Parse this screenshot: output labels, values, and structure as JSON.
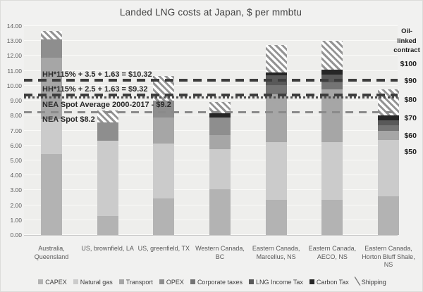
{
  "chart_data": {
    "type": "bar",
    "stacked": true,
    "title": "Landed LNG costs at Japan, $ per mmbtu",
    "ylabel": "",
    "ylim": [
      0,
      14
    ],
    "y_ticks_step": 1,
    "grid": true,
    "legend_position": "bottom",
    "series_names": [
      "CAPEX",
      "Natural gas",
      "Transport",
      "OPEX",
      "Corporate taxes",
      "LNG Income Tax",
      "Carbon Tax",
      "Shipping"
    ],
    "legend": [
      {
        "label": "CAPEX",
        "color": "#b3b3b3",
        "type": "square"
      },
      {
        "label": "Natural gas",
        "color": "#cbcbcb",
        "type": "square"
      },
      {
        "label": "Transport",
        "color": "#a6a6a6",
        "type": "square"
      },
      {
        "label": "OPEX",
        "color": "#8e8e8e",
        "type": "square"
      },
      {
        "label": "Corporate taxes",
        "color": "#747474",
        "type": "square"
      },
      {
        "label": "LNG Income Tax",
        "color": "#595959",
        "type": "square"
      },
      {
        "label": "Carbon Tax",
        "color": "#262626",
        "type": "square"
      },
      {
        "label": "Shipping",
        "color": "#949494",
        "type": "hatch"
      }
    ],
    "bars": [
      {
        "category_lines": [
          "Australia,",
          "Queensland"
        ],
        "total": 13.65,
        "segments": [
          {
            "name": "CAPEX",
            "value": 5.4
          },
          {
            "name": "Natural gas",
            "value": 2.4
          },
          {
            "name": "Transport",
            "value": 4.1
          },
          {
            "name": "OPEX",
            "value": 1.2
          },
          {
            "name": "Shipping",
            "value": 0.55
          }
        ]
      },
      {
        "category_lines": [
          "US, brownfield, LA"
        ],
        "total": 8.35,
        "segments": [
          {
            "name": "CAPEX",
            "value": 1.25
          },
          {
            "name": "Natural gas",
            "value": 5.05
          },
          {
            "name": "OPEX",
            "value": 1.25
          },
          {
            "name": "Shipping",
            "value": 0.8
          }
        ]
      },
      {
        "category_lines": [
          "US, greenfield, TX"
        ],
        "total": 10.65,
        "segments": [
          {
            "name": "CAPEX",
            "value": 2.45
          },
          {
            "name": "Natural gas",
            "value": 3.7
          },
          {
            "name": "Transport",
            "value": 1.7
          },
          {
            "name": "OPEX",
            "value": 1.15
          },
          {
            "name": "Shipping",
            "value": 1.65
          }
        ]
      },
      {
        "category_lines": [
          "Western Canada,",
          "BC"
        ],
        "total": 8.9,
        "segments": [
          {
            "name": "CAPEX",
            "value": 3.05
          },
          {
            "name": "Natural gas",
            "value": 2.7
          },
          {
            "name": "Transport",
            "value": 0.95
          },
          {
            "name": "OPEX",
            "value": 1.15
          },
          {
            "name": "Carbon Tax",
            "value": 0.3
          },
          {
            "name": "Shipping",
            "value": 0.75
          }
        ]
      },
      {
        "category_lines": [
          "Eastern Canada,",
          "Marcellus, NS"
        ],
        "total": 12.75,
        "segments": [
          {
            "name": "CAPEX",
            "value": 2.35
          },
          {
            "name": "Natural gas",
            "value": 3.85
          },
          {
            "name": "Transport",
            "value": 3.25
          },
          {
            "name": "Corporate taxes",
            "value": 0.6
          },
          {
            "name": "LNG Income Tax",
            "value": 0.65
          },
          {
            "name": "Carbon Tax",
            "value": 0.2
          },
          {
            "name": "Shipping",
            "value": 1.85
          }
        ]
      },
      {
        "category_lines": [
          "Eastern Canada,",
          "AECO, NS"
        ],
        "total": 13.0,
        "segments": [
          {
            "name": "CAPEX",
            "value": 2.35
          },
          {
            "name": "Natural gas",
            "value": 3.85
          },
          {
            "name": "Transport",
            "value": 3.55
          },
          {
            "name": "Corporate taxes",
            "value": 0.5
          },
          {
            "name": "LNG Income Tax",
            "value": 0.5
          },
          {
            "name": "Carbon Tax",
            "value": 0.35
          },
          {
            "name": "Shipping",
            "value": 1.9
          }
        ]
      },
      {
        "category_lines": [
          "Eastern Canada,",
          "Horton Bluff Shale,",
          "NS"
        ],
        "total": 9.75,
        "segments": [
          {
            "name": "CAPEX",
            "value": 2.6
          },
          {
            "name": "Natural gas",
            "value": 3.75
          },
          {
            "name": "Transport",
            "value": 0.65
          },
          {
            "name": "Corporate taxes",
            "value": 0.35
          },
          {
            "name": "LNG Income Tax",
            "value": 0.35
          },
          {
            "name": "Carbon Tax",
            "value": 0.3
          },
          {
            "name": "Shipping",
            "value": 1.75
          }
        ]
      }
    ],
    "ref_lines": [
      {
        "label": "HH*115% + 3.5 + 1.63  = $10.32",
        "value": 10.32,
        "style": "dash-bold",
        "label_side": "above"
      },
      {
        "label": "HH*115% + 2.5 + 1.63  = $9.32",
        "value": 9.32,
        "style": "dash-bold",
        "label_side": "above"
      },
      {
        "label": "NEA Spot Average 2000-2017 - $9.2",
        "value": 9.2,
        "style": "dotted",
        "label_side": "below"
      },
      {
        "label": "NEA Spot $8.2",
        "value": 8.2,
        "style": "dash-thin",
        "label_side": "below"
      }
    ],
    "right_axis": {
      "title_lines": [
        "Oil-",
        "linked",
        "contract"
      ],
      "ticks": [
        {
          "label": "$100",
          "value": 11.46
        },
        {
          "label": "$90",
          "value": 10.33
        },
        {
          "label": "$80",
          "value": 9.06
        },
        {
          "label": "$70",
          "value": 7.83
        },
        {
          "label": "$60",
          "value": 6.66
        },
        {
          "label": "$50",
          "value": 5.57
        }
      ]
    }
  }
}
